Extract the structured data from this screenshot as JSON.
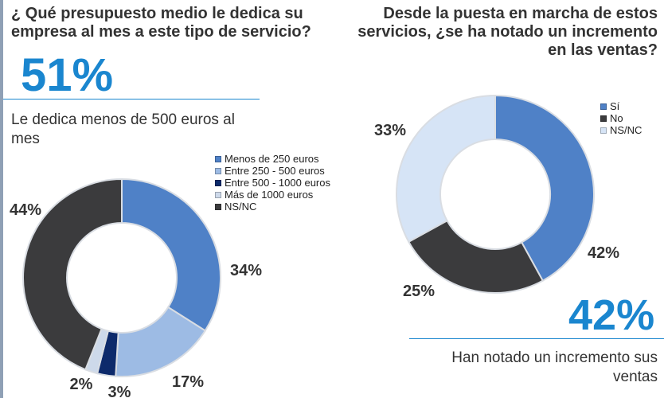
{
  "left": {
    "question": [
      "¿ Qué presupuesto medio le dedica su",
      "empresa al mes a este tipo de servicio?"
    ],
    "headline_value": "51%",
    "headline_desc": [
      "Le dedica menos de 500 euros al",
      "mes"
    ]
  },
  "right": {
    "question": [
      "Desde la puesta en marcha de estos",
      "servicios, ¿se ha notado un incremento",
      "en las ventas?"
    ],
    "headline_value": "42%",
    "headline_desc": [
      "Han notado un incremento sus",
      "ventas"
    ]
  },
  "chart_data": [
    {
      "type": "donut",
      "legend_position": "top-right",
      "series": [
        {
          "name": "Menos de 250 euros",
          "value": 34,
          "label": "34%",
          "color": "#4f81c7"
        },
        {
          "name": "Entre 250 - 500 euros",
          "value": 17,
          "label": "17%",
          "color": "#9dbbe4"
        },
        {
          "name": "Entre 500 - 1000 euros",
          "value": 3,
          "label": "3%",
          "color": "#0d2a6b"
        },
        {
          "name": "Más de 1000 euros",
          "value": 2,
          "label": "2%",
          "color": "#cdd9ea"
        },
        {
          "name": "NS/NC",
          "value": 44,
          "label": "44%",
          "color": "#3b3b3d"
        }
      ]
    },
    {
      "type": "donut",
      "legend_position": "top-right",
      "series": [
        {
          "name": "Sí",
          "value": 42,
          "label": "42%",
          "color": "#4f81c7"
        },
        {
          "name": "No",
          "value": 25,
          "label": "25%",
          "color": "#3b3b3d"
        },
        {
          "name": "NS/NC",
          "value": 33,
          "label": "33%",
          "color": "#d6e4f6"
        }
      ]
    }
  ]
}
